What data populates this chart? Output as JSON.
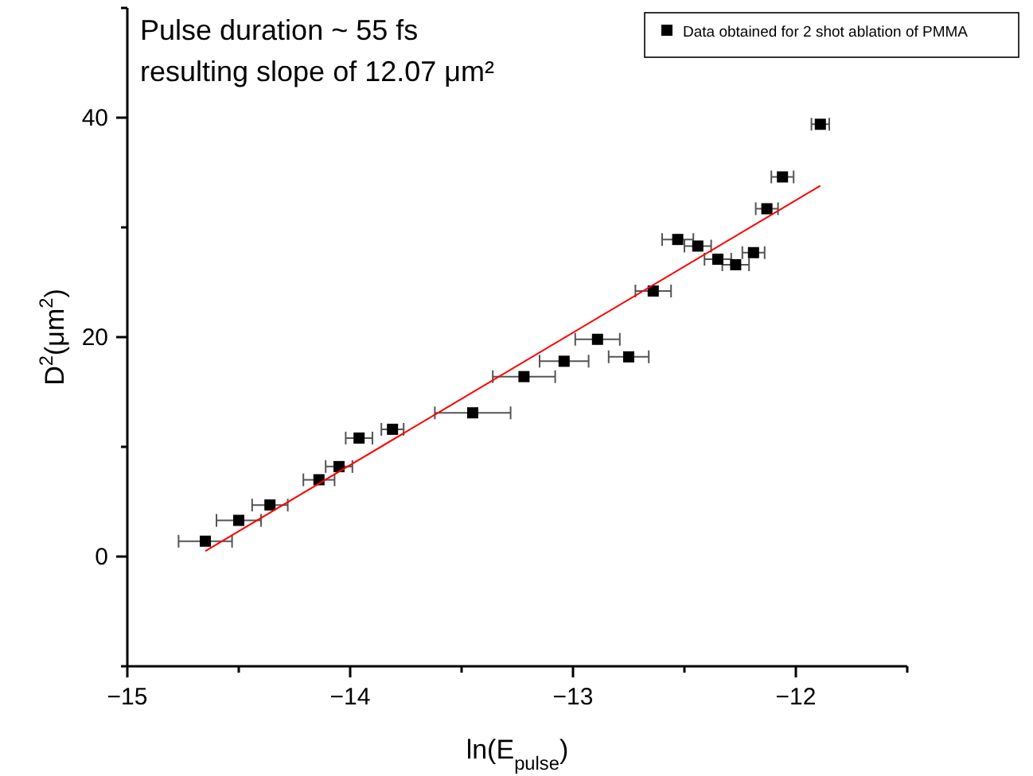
{
  "chart_data": {
    "type": "scatter",
    "xlabel": "ln(E$_{pulse}$)",
    "ylabel": "D$^{2}$(μm$^{2}$)",
    "annotations": [
      "Pulse duration ~ 55 fs",
      "resulting slope of 12.07 μm²"
    ],
    "xlim": [
      -15,
      -11.5
    ],
    "xticks": [
      -15,
      {
        "value": -14.5,
        "label": null
      },
      -14,
      {
        "value": -13.5,
        "label": null
      },
      -13,
      {
        "value": -12.5,
        "label": null
      },
      -12,
      {
        "value": -11.5,
        "label": null
      }
    ],
    "ylim": [
      -10,
      50
    ],
    "yticks": [
      {
        "value": -10,
        "label": null
      },
      0,
      {
        "value": 10,
        "label": null
      },
      20,
      {
        "value": 30,
        "label": null
      },
      40,
      {
        "value": 50,
        "label": null
      }
    ],
    "grid": false,
    "legend": "top right",
    "marker": "square",
    "series": [
      {
        "name": "Data obtained for 2 shot ablation of PMMA",
        "color": "#000000",
        "x": [
          -14.65,
          -14.5,
          -14.36,
          -14.14,
          -14.05,
          -13.96,
          -13.81,
          -13.45,
          -13.22,
          -13.04,
          -12.75,
          -12.89,
          -12.64,
          -12.53,
          -12.44,
          -12.35,
          -12.27,
          -12.19,
          -12.13,
          -12.06,
          -11.89
        ],
        "values": [
          1.4,
          3.3,
          4.7,
          7.0,
          8.2,
          10.8,
          11.6,
          13.1,
          16.4,
          17.8,
          18.2,
          19.8,
          24.2,
          28.9,
          28.3,
          27.1,
          26.6,
          27.7,
          31.7,
          34.6,
          39.4
        ],
        "xerrors": [
          0.12,
          0.1,
          0.08,
          0.07,
          0.06,
          0.06,
          0.05,
          0.17,
          0.14,
          0.11,
          0.09,
          0.1,
          0.08,
          0.07,
          0.06,
          0.06,
          0.06,
          0.05,
          0.05,
          0.05,
          0.04
        ]
      },
      {
        "type": "line",
        "color": "#ff0000",
        "marker": "none",
        "line_style": "solid",
        "x": [
          -14.65,
          -11.89
        ],
        "values": [
          0.5,
          33.8
        ]
      }
    ]
  }
}
